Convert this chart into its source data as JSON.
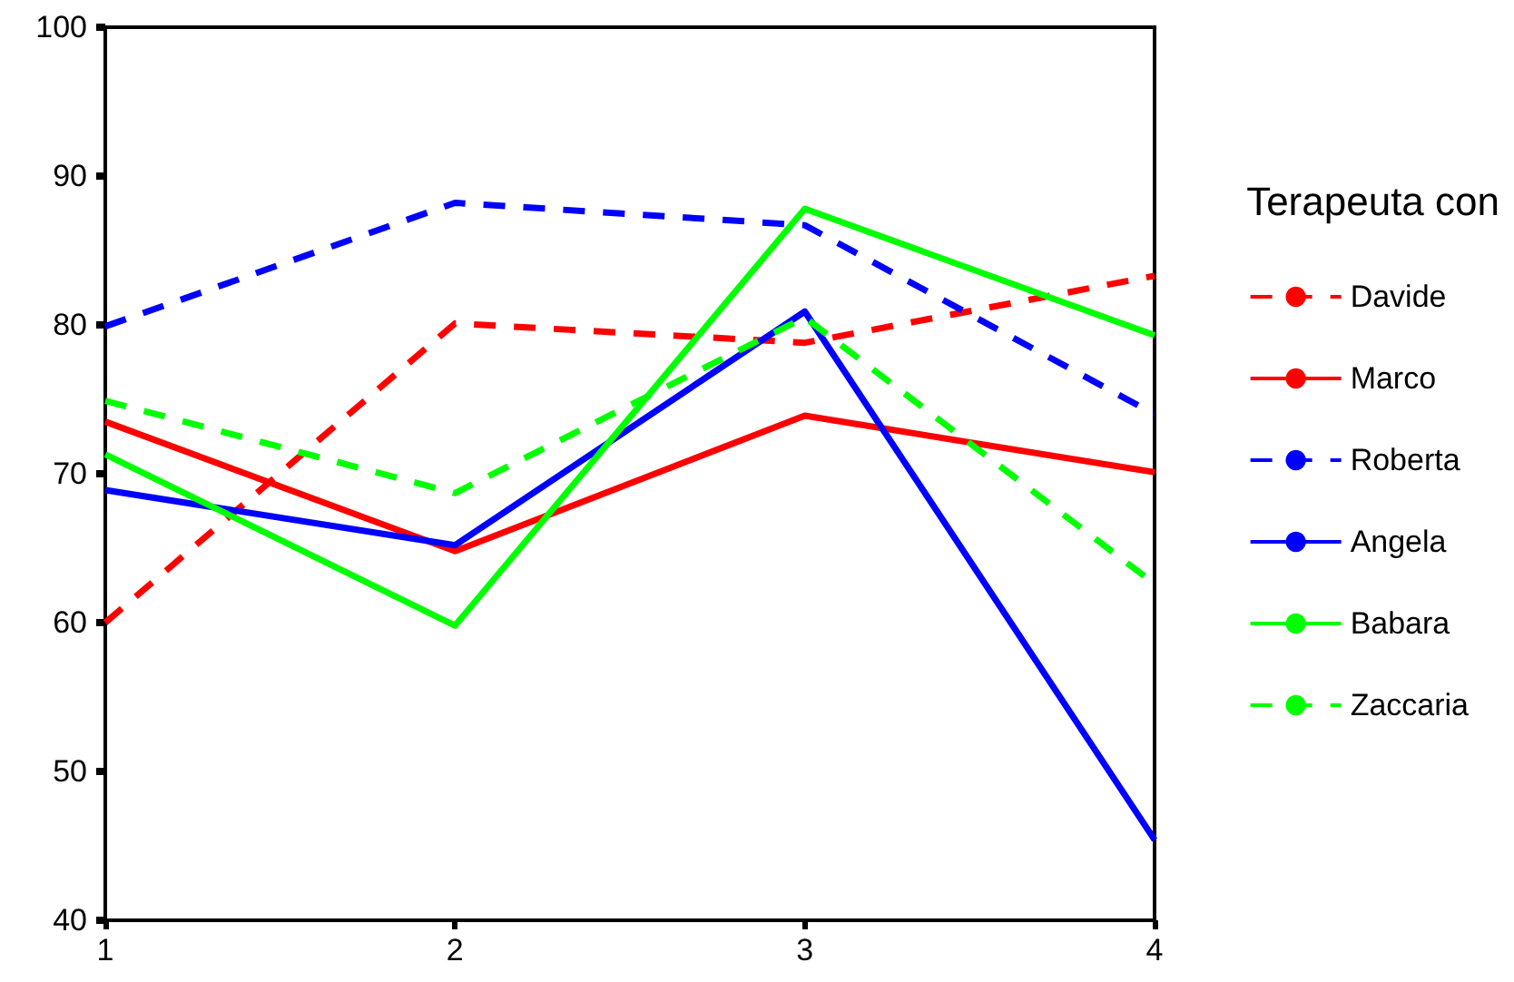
{
  "chart_data": {
    "type": "line",
    "legend_title": "Terapeuta con",
    "legend": "right",
    "grid": false,
    "marker": "none",
    "x": [
      1,
      2,
      3,
      4
    ],
    "xlim": [
      1,
      4
    ],
    "xticks": [
      1,
      2,
      3,
      4
    ],
    "ylim": [
      40,
      100
    ],
    "yticks": [
      40,
      50,
      60,
      70,
      80,
      90,
      100
    ],
    "series": [
      {
        "name": "Davide",
        "color": "#ff0000",
        "line_style": "dashed",
        "values": [
          60,
          80.1,
          78.8,
          83.3
        ]
      },
      {
        "name": "Marco",
        "color": "#ff0000",
        "line_style": "solid",
        "values": [
          73.5,
          64.8,
          73.9,
          70.1
        ]
      },
      {
        "name": "Roberta",
        "color": "#0000ff",
        "line_style": "dashed",
        "values": [
          79.9,
          88.2,
          86.7,
          74.0
        ]
      },
      {
        "name": "Angela",
        "color": "#0000ff",
        "line_style": "solid",
        "values": [
          68.9,
          65.2,
          80.9,
          45.4
        ]
      },
      {
        "name": "Babara",
        "color": "#00ff00",
        "line_style": "solid",
        "values": [
          71.3,
          59.8,
          87.8,
          79.3
        ]
      },
      {
        "name": "Zaccaria",
        "color": "#00ff00",
        "line_style": "dashed",
        "values": [
          74.9,
          68.7,
          80.5,
          62.6
        ]
      }
    ]
  }
}
